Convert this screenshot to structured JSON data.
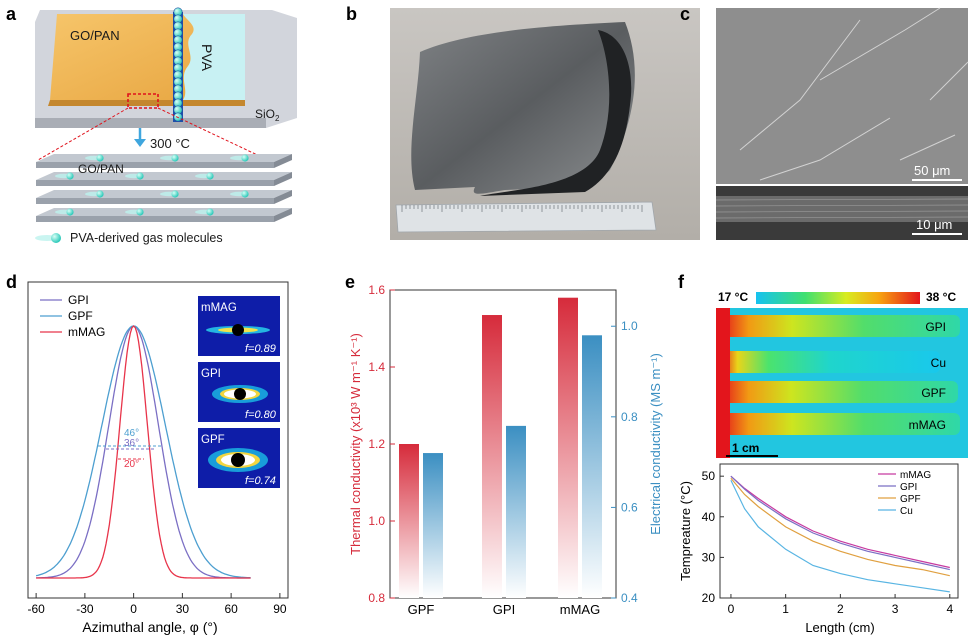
{
  "panels": {
    "a": {
      "letter": "a",
      "film_label": "GO/PAN",
      "pva_label": "PVA",
      "substrate_label": "SiO",
      "substrate_sub": "2",
      "anneal_label": "300 °C",
      "stack_label": "GO/PAN",
      "legend_label": "PVA-derived gas molecules"
    },
    "b": {
      "letter": "b"
    },
    "c": {
      "letter": "c",
      "scalebar_top": "50 μm",
      "scalebar_bottom": "10 μm"
    },
    "d": {
      "letter": "d",
      "xlabel": "Azimuthal angle, φ (°)",
      "legend": [
        "GPI",
        "GPF",
        "mMAG"
      ],
      "widths": [
        "46°",
        "36°",
        "20°"
      ],
      "insets": [
        {
          "name": "mMAG",
          "f": "f=0.89"
        },
        {
          "name": "GPI",
          "f": "f=0.80"
        },
        {
          "name": "GPF",
          "f": "f=0.74"
        }
      ]
    },
    "e": {
      "letter": "e",
      "ylabel_left": "Thermal conductivity (x10³ W m⁻¹ K⁻¹)",
      "ylabel_right": "Electrical conductivity (MS m⁻¹)"
    },
    "f": {
      "letter": "f",
      "temp_min": "17 °C",
      "temp_max": "38 °C",
      "strip_labels": [
        "GPI",
        "Cu",
        "GPF",
        "mMAG"
      ],
      "scalebar": "1 cm",
      "xlabel": "Length (cm)",
      "ylabel": "Tempreature (°C)"
    }
  },
  "colors": {
    "GPI": "#7b6fc4",
    "GPF": "#4d9fd0",
    "mMAG": "#e8344a",
    "Cu": "#59b5e3",
    "mMAG_line": "#c73aa0",
    "GPF_line": "#e0a040",
    "thermal": "#d62b3b",
    "electrical": "#3b8fc2"
  },
  "chart_data": [
    {
      "panel": "d",
      "type": "line",
      "xlabel": "Azimuthal angle, φ (°)",
      "xlim": [
        -65,
        95
      ],
      "xticks": [
        -60,
        -30,
        0,
        30,
        60,
        90
      ],
      "series": [
        {
          "name": "GPI",
          "fwhm": 36,
          "amplitude": 1.0,
          "color": "#7b6fc4"
        },
        {
          "name": "GPF",
          "fwhm": 46,
          "amplitude": 1.0,
          "color": "#4d9fd0"
        },
        {
          "name": "mMAG",
          "fwhm": 20,
          "amplitude": 1.0,
          "color": "#e8344a"
        }
      ]
    },
    {
      "panel": "e",
      "type": "bar",
      "categories": [
        "GPF",
        "GPI",
        "mMAG"
      ],
      "series": [
        {
          "name": "Thermal conductivity",
          "axis": "left",
          "values": [
            1.2,
            1.535,
            1.58
          ]
        },
        {
          "name": "Electrical conductivity",
          "axis": "right",
          "values": [
            0.72,
            0.78,
            0.98
          ]
        }
      ],
      "ylim_left": [
        0.8,
        1.6
      ],
      "yticks_left": [
        "0.8",
        "1.0",
        "1.2",
        "1.4",
        "1.6"
      ],
      "ylim_right": [
        0.4,
        1.08
      ],
      "yticks_right": [
        "0.4",
        "0.6",
        "0.8",
        "1.0"
      ]
    },
    {
      "panel": "f",
      "type": "line",
      "xlabel": "Length (cm)",
      "ylabel": "Tempreature (°C)",
      "xlim": [
        -0.2,
        4.15
      ],
      "ylim": [
        20,
        53
      ],
      "xticks": [
        0,
        1,
        2,
        3,
        4
      ],
      "yticks": [
        20,
        30,
        40,
        50
      ],
      "x": [
        0,
        0.25,
        0.5,
        1,
        1.5,
        2,
        2.5,
        3,
        3.5,
        4
      ],
      "series": [
        {
          "name": "mMAG",
          "values": [
            50,
            47,
            44.5,
            40,
            36.5,
            34,
            32,
            30.5,
            29,
            27.5
          ]
        },
        {
          "name": "GPI",
          "values": [
            50,
            46.8,
            44,
            39.5,
            36,
            33.5,
            31.5,
            30,
            28.5,
            27
          ]
        },
        {
          "name": "GPF",
          "values": [
            49.5,
            45.5,
            42.5,
            37.5,
            34,
            31.5,
            29.5,
            28,
            27,
            25.5
          ]
        },
        {
          "name": "Cu",
          "values": [
            49,
            42,
            37.5,
            32,
            28,
            26,
            24.5,
            23.5,
            22.5,
            21.5
          ]
        }
      ]
    }
  ]
}
